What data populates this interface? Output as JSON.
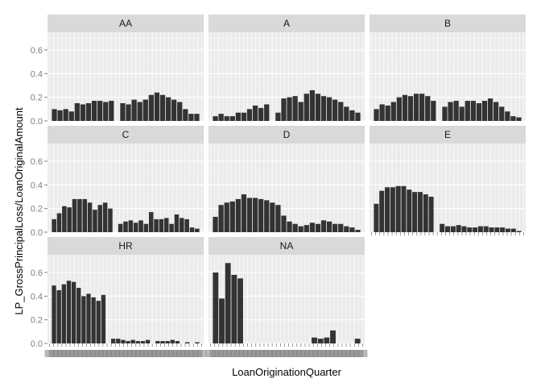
{
  "chart_data": {
    "type": "bar",
    "layout": "faceted-grid",
    "xlabel": "LoanOriginationQuarter",
    "ylabel": "LP_GrossPrincipalLoss/LoanOriginalAmount",
    "ylim": [
      0,
      0.75
    ],
    "yticks": [
      "0.0",
      "0.2",
      "0.4",
      "0.6"
    ],
    "ytick_values": [
      0,
      0.2,
      0.4,
      0.6
    ],
    "grid": true,
    "n_quarters": 38,
    "facets": [
      {
        "label": "AA",
        "values": [
          0.1,
          0.09,
          0.1,
          0.08,
          0.15,
          0.14,
          0.15,
          0.17,
          0.17,
          0.16,
          0.17,
          0.0,
          0.15,
          0.14,
          0.18,
          0.16,
          0.18,
          0.22,
          0.24,
          0.22,
          0.2,
          0.18,
          0.16,
          0.1,
          0.06,
          0.06
        ]
      },
      {
        "label": "A",
        "values": [
          0.04,
          0.06,
          0.04,
          0.04,
          0.07,
          0.07,
          0.1,
          0.13,
          0.11,
          0.14,
          0.0,
          0.07,
          0.19,
          0.2,
          0.21,
          0.16,
          0.23,
          0.26,
          0.23,
          0.21,
          0.2,
          0.18,
          0.16,
          0.12,
          0.09,
          0.07
        ]
      },
      {
        "label": "B",
        "values": [
          0.1,
          0.14,
          0.13,
          0.16,
          0.2,
          0.22,
          0.21,
          0.23,
          0.23,
          0.21,
          0.17,
          0.0,
          0.12,
          0.16,
          0.17,
          0.12,
          0.17,
          0.17,
          0.15,
          0.17,
          0.19,
          0.16,
          0.12,
          0.08,
          0.04,
          0.03
        ]
      },
      {
        "label": "C",
        "values": [
          0.11,
          0.16,
          0.22,
          0.21,
          0.28,
          0.28,
          0.28,
          0.25,
          0.19,
          0.23,
          0.25,
          0.2,
          0.0,
          0.07,
          0.09,
          0.1,
          0.08,
          0.1,
          0.07,
          0.17,
          0.11,
          0.11,
          0.12,
          0.07,
          0.15,
          0.12,
          0.11,
          0.04,
          0.03
        ]
      },
      {
        "label": "D",
        "values": [
          0.13,
          0.23,
          0.25,
          0.26,
          0.28,
          0.32,
          0.29,
          0.29,
          0.28,
          0.27,
          0.25,
          0.23,
          0.14,
          0.09,
          0.07,
          0.05,
          0.06,
          0.08,
          0.07,
          0.1,
          0.09,
          0.07,
          0.07,
          0.05,
          0.04,
          0.02
        ]
      },
      {
        "label": "E",
        "values": [
          0.24,
          0.35,
          0.38,
          0.38,
          0.39,
          0.39,
          0.36,
          0.34,
          0.34,
          0.32,
          0.3,
          0.0,
          0.07,
          0.05,
          0.05,
          0.06,
          0.05,
          0.04,
          0.04,
          0.05,
          0.05,
          0.04,
          0.04,
          0.04,
          0.03,
          0.03,
          0.01
        ]
      },
      {
        "label": "HR",
        "values": [
          0.49,
          0.45,
          0.5,
          0.53,
          0.52,
          0.47,
          0.4,
          0.42,
          0.39,
          0.36,
          0.41,
          0.0,
          0.04,
          0.04,
          0.03,
          0.02,
          0.03,
          0.02,
          0.02,
          0.03,
          0.0,
          0.02,
          0.02,
          0.02,
          0.03,
          0.02,
          0.0,
          0.01,
          0.0,
          0.01
        ]
      },
      {
        "label": "NA",
        "values": [
          0.6,
          0.38,
          0.68,
          0.58,
          0.55,
          0,
          0,
          0,
          0,
          0,
          0,
          0,
          0,
          0,
          0,
          0,
          0.05,
          0.04,
          0.05,
          0.11,
          0.0,
          0.0,
          0.0,
          0.04
        ]
      }
    ],
    "bar_color": "#333333",
    "panel_background": "#EBEBEB",
    "strip_background": "#D9D9D9",
    "grid_color": "#FFFFFF"
  }
}
